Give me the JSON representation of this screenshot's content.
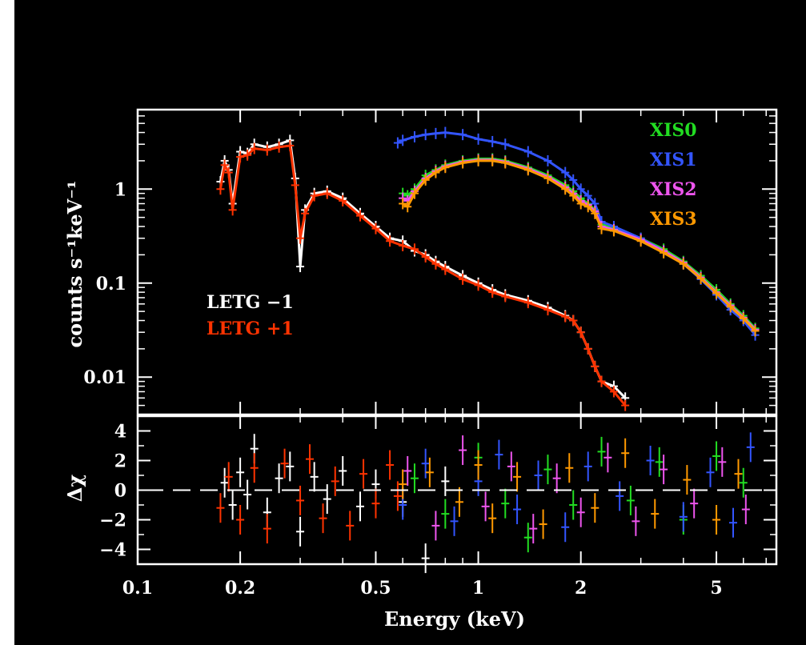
{
  "chart_data": {
    "type": "scatter",
    "x_scale": "log",
    "grid": false,
    "background": "#000000",
    "xlabel": "Energy (keV)",
    "x_ticks": [
      {
        "value": 0.1,
        "label": "0.1"
      },
      {
        "value": 0.2,
        "label": "0.2"
      },
      {
        "value": 0.5,
        "label": "0.5"
      },
      {
        "value": 1,
        "label": "1"
      },
      {
        "value": 2,
        "label": "2"
      },
      {
        "value": 5,
        "label": "5"
      }
    ],
    "xlim": [
      0.1,
      7.5
    ],
    "panels": [
      {
        "name": "spectrum",
        "ylabel": "counts s⁻¹keV⁻¹",
        "y_scale": "log",
        "ylim": [
          0.004,
          7
        ],
        "y_ticks": [
          {
            "value": 1,
            "label": "1"
          },
          {
            "value": 0.1,
            "label": "0.1"
          },
          {
            "value": 0.01,
            "label": "0.01"
          }
        ],
        "legends": [
          {
            "placement": "top-right",
            "entries": [
              {
                "label": "XIS0",
                "color": "#22dd22"
              },
              {
                "label": "XIS1",
                "color": "#3355ff"
              },
              {
                "label": "XIS2",
                "color": "#ee55ee"
              },
              {
                "label": "XIS3",
                "color": "#ff9900"
              }
            ]
          },
          {
            "placement": "center-left",
            "entries": [
              {
                "label": "LETG −1",
                "color": "#ffffff"
              },
              {
                "label": "LETG +1",
                "color": "#ff3300"
              }
            ]
          }
        ],
        "series": [
          {
            "name": "LETG −1",
            "color": "#ffffff",
            "x": [
              0.175,
              0.18,
              0.185,
              0.19,
              0.2,
              0.21,
              0.22,
              0.24,
              0.26,
              0.28,
              0.29,
              0.3,
              0.31,
              0.33,
              0.36,
              0.4,
              0.45,
              0.5,
              0.55,
              0.6,
              0.65,
              0.7,
              0.75,
              0.8,
              0.9,
              1.0,
              1.1,
              1.2,
              1.4,
              1.6,
              1.8,
              1.9,
              2.0,
              2.1,
              2.2,
              2.3,
              2.5,
              2.7
            ],
            "y": [
              1.2,
              2.0,
              1.6,
              0.7,
              2.5,
              2.4,
              3.0,
              2.8,
              3.0,
              3.3,
              1.3,
              0.15,
              0.6,
              0.9,
              0.95,
              0.8,
              0.55,
              0.4,
              0.3,
              0.28,
              0.22,
              0.2,
              0.17,
              0.15,
              0.12,
              0.1,
              0.085,
              0.075,
              0.065,
              0.055,
              0.045,
              0.04,
              0.03,
              0.02,
              0.013,
              0.009,
              0.008,
              0.006
            ]
          },
          {
            "name": "LETG +1",
            "color": "#ff3300",
            "x": [
              0.175,
              0.18,
              0.185,
              0.19,
              0.2,
              0.21,
              0.22,
              0.24,
              0.26,
              0.28,
              0.29,
              0.3,
              0.31,
              0.33,
              0.36,
              0.4,
              0.45,
              0.5,
              0.55,
              0.6,
              0.65,
              0.7,
              0.75,
              0.8,
              0.9,
              1.0,
              1.1,
              1.2,
              1.4,
              1.6,
              1.8,
              1.9,
              2.0,
              2.1,
              2.2,
              2.3,
              2.5,
              2.7
            ],
            "y": [
              1.0,
              1.8,
              1.5,
              0.6,
              2.2,
              2.3,
              2.7,
              2.6,
              2.8,
              2.9,
              1.1,
              0.3,
              0.55,
              0.85,
              0.9,
              0.75,
              0.52,
              0.38,
              0.28,
              0.25,
              0.23,
              0.19,
              0.16,
              0.14,
              0.11,
              0.095,
              0.08,
              0.072,
              0.062,
              0.052,
              0.044,
              0.04,
              0.03,
              0.02,
              0.013,
              0.009,
              0.007,
              0.005
            ]
          },
          {
            "name": "XIS0",
            "color": "#22dd22",
            "x": [
              0.6,
              0.62,
              0.65,
              0.7,
              0.75,
              0.8,
              0.9,
              1.0,
              1.1,
              1.2,
              1.4,
              1.6,
              1.8,
              1.9,
              2.0,
              2.1,
              2.2,
              2.3,
              2.5,
              3.0,
              3.5,
              4.0,
              4.5,
              5.0,
              5.5,
              6.0,
              6.5
            ],
            "y": [
              0.9,
              0.85,
              1.0,
              1.4,
              1.6,
              1.8,
              2.0,
              2.1,
              2.1,
              2.0,
              1.7,
              1.4,
              1.1,
              0.95,
              0.8,
              0.7,
              0.6,
              0.42,
              0.38,
              0.3,
              0.23,
              0.17,
              0.12,
              0.085,
              0.06,
              0.045,
              0.033
            ]
          },
          {
            "name": "XIS1",
            "color": "#3355ff",
            "x": [
              0.58,
              0.6,
              0.65,
              0.7,
              0.75,
              0.8,
              0.9,
              1.0,
              1.1,
              1.2,
              1.4,
              1.6,
              1.8,
              1.9,
              2.0,
              2.1,
              2.2,
              2.3,
              2.5,
              3.0,
              3.5,
              4.0,
              4.5,
              5.0,
              5.5,
              6.0,
              6.5
            ],
            "y": [
              3.1,
              3.3,
              3.6,
              3.8,
              3.9,
              4.0,
              3.8,
              3.4,
              3.2,
              3.0,
              2.5,
              2.0,
              1.5,
              1.25,
              1.0,
              0.85,
              0.7,
              0.45,
              0.4,
              0.3,
              0.22,
              0.16,
              0.11,
              0.075,
              0.052,
              0.04,
              0.028
            ]
          },
          {
            "name": "XIS2",
            "color": "#ee55ee",
            "x": [
              0.6,
              0.62,
              0.65,
              0.7,
              0.75,
              0.8,
              0.9,
              1.0,
              1.1,
              1.2,
              1.4,
              1.6,
              1.8,
              1.9,
              2.0,
              2.1,
              2.2,
              2.3,
              2.5,
              3.0,
              3.5,
              4.0,
              4.5,
              5.0,
              5.5,
              6.0,
              6.5
            ],
            "y": [
              0.8,
              0.75,
              0.95,
              1.3,
              1.55,
              1.75,
              1.95,
              2.05,
              2.05,
              1.95,
              1.65,
              1.35,
              1.05,
              0.9,
              0.75,
              0.68,
              0.58,
              0.4,
              0.37,
              0.29,
              0.22,
              0.165,
              0.115,
              0.08,
              0.058,
              0.043,
              0.032
            ]
          },
          {
            "name": "XIS3",
            "color": "#ff9900",
            "x": [
              0.6,
              0.62,
              0.65,
              0.7,
              0.75,
              0.8,
              0.9,
              1.0,
              1.1,
              1.2,
              1.4,
              1.6,
              1.8,
              1.9,
              2.0,
              2.1,
              2.2,
              2.3,
              2.5,
              3.0,
              3.5,
              4.0,
              4.5,
              5.0,
              5.5,
              6.0,
              6.5
            ],
            "y": [
              0.7,
              0.65,
              0.9,
              1.25,
              1.5,
              1.7,
              1.9,
              2.0,
              2.0,
              1.9,
              1.6,
              1.3,
              1.0,
              0.85,
              0.7,
              0.65,
              0.55,
              0.38,
              0.36,
              0.28,
              0.21,
              0.16,
              0.112,
              0.078,
              0.056,
              0.042,
              0.031
            ]
          }
        ]
      },
      {
        "name": "residuals",
        "ylabel": "Δχ",
        "ylim": [
          -5,
          5
        ],
        "y_ticks": [
          {
            "value": 4,
            "label": "4"
          },
          {
            "value": 2,
            "label": "2"
          },
          {
            "value": 0,
            "label": "0"
          },
          {
            "value": -2,
            "label": "−2"
          },
          {
            "value": -4,
            "label": "−4"
          }
        ],
        "reference_line": {
          "y": 0,
          "style": "dashed",
          "color": "#ffffff"
        },
        "series": [
          {
            "name": "LETG −1",
            "color": "#ffffff",
            "x": [
              0.18,
              0.19,
              0.2,
              0.21,
              0.22,
              0.24,
              0.26,
              0.28,
              0.3,
              0.33,
              0.36,
              0.4,
              0.45,
              0.5,
              0.6,
              0.7,
              0.8
            ],
            "y": [
              0.5,
              -1.0,
              1.2,
              -0.3,
              2.8,
              -1.5,
              0.8,
              1.6,
              -2.8,
              0.9,
              -0.6,
              1.3,
              -1.1,
              0.4,
              -0.8,
              -4.6,
              0.6
            ]
          },
          {
            "name": "LETG +1",
            "color": "#ff3300",
            "x": [
              0.175,
              0.185,
              0.2,
              0.22,
              0.24,
              0.27,
              0.3,
              0.32,
              0.35,
              0.38,
              0.42,
              0.46,
              0.5,
              0.55,
              0.58
            ],
            "y": [
              -1.2,
              0.9,
              -2.0,
              1.5,
              -2.6,
              1.8,
              -0.7,
              2.1,
              -1.9,
              0.6,
              -2.4,
              1.1,
              -0.9,
              1.7,
              -0.4
            ]
          },
          {
            "name": "XIS0",
            "color": "#22dd22",
            "x": [
              0.65,
              0.8,
              1.0,
              1.2,
              1.4,
              1.6,
              1.9,
              2.3,
              2.8,
              3.4,
              4.0,
              5.0,
              6.0
            ],
            "y": [
              0.8,
              -1.6,
              2.2,
              -0.9,
              -3.2,
              1.4,
              -1.0,
              2.6,
              -0.7,
              1.9,
              -2.0,
              2.3,
              0.5
            ]
          },
          {
            "name": "XIS1",
            "color": "#3355ff",
            "x": [
              0.6,
              0.7,
              0.85,
              1.0,
              1.15,
              1.3,
              1.5,
              1.8,
              2.1,
              2.6,
              3.2,
              4.0,
              4.8,
              5.6,
              6.3
            ],
            "y": [
              -1.0,
              1.8,
              -2.1,
              0.6,
              2.4,
              -1.3,
              1.0,
              -2.5,
              1.6,
              -0.4,
              2.0,
              -1.8,
              1.2,
              -2.2,
              2.9
            ]
          },
          {
            "name": "XIS2",
            "color": "#ee55ee",
            "x": [
              0.62,
              0.75,
              0.9,
              1.05,
              1.25,
              1.45,
              1.7,
              2.0,
              2.4,
              2.9,
              3.5,
              4.3,
              5.2,
              6.1
            ],
            "y": [
              1.3,
              -2.4,
              2.7,
              -1.1,
              1.6,
              -2.6,
              0.8,
              -1.5,
              2.2,
              -2.1,
              1.4,
              -0.9,
              1.9,
              -1.3
            ]
          },
          {
            "name": "XIS3",
            "color": "#ff9900",
            "x": [
              0.6,
              0.72,
              0.88,
              1.0,
              1.1,
              1.3,
              1.55,
              1.85,
              2.2,
              2.7,
              3.3,
              4.1,
              5.0,
              5.8
            ],
            "y": [
              0.4,
              1.2,
              -0.8,
              1.7,
              -1.9,
              0.9,
              -2.3,
              1.5,
              -1.2,
              2.5,
              -1.6,
              0.7,
              -2.0,
              1.1
            ]
          }
        ]
      }
    ]
  }
}
